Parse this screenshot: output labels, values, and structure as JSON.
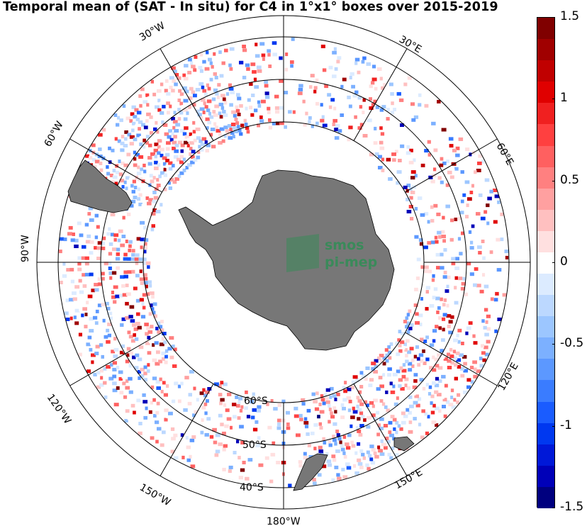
{
  "title": "Temporal mean of (SAT - In situ) for C4 in 1°x1° boxes over 2015-2019",
  "map": {
    "projection": "south-polar-stereographic",
    "longitude_labels": [
      {
        "lon": -30,
        "text": "30°W"
      },
      {
        "lon": 30,
        "text": "30°E"
      },
      {
        "lon": -60,
        "text": "60°W"
      },
      {
        "lon": 60,
        "text": "60°E"
      },
      {
        "lon": -90,
        "text": "90°W"
      },
      {
        "lon": -120,
        "text": "120°W"
      },
      {
        "lon": 120,
        "text": "120°E"
      },
      {
        "lon": -150,
        "text": "150°W"
      },
      {
        "lon": 150,
        "text": "150°E"
      },
      {
        "lon": 180,
        "text": "180°W"
      }
    ],
    "latitude_labels": [
      {
        "lat": -60,
        "text": "60°S"
      },
      {
        "lat": -50,
        "text": "50°S"
      },
      {
        "lat": -40,
        "text": "40°S"
      }
    ],
    "land_color": "#777777",
    "logo": {
      "line1": "smos",
      "line2": "pi-mep",
      "color": "#3a8a5a"
    }
  },
  "colorbar": {
    "min": -1.5,
    "max": 1.5,
    "colormap": "blue-white-red diverging",
    "ticks": [
      {
        "value": 1.5,
        "label": "1.5"
      },
      {
        "value": 1,
        "label": "1"
      },
      {
        "value": 0.5,
        "label": "0.5"
      },
      {
        "value": 0,
        "label": "0"
      },
      {
        "value": -0.5,
        "label": "-0.5"
      },
      {
        "value": -1,
        "label": "-1"
      },
      {
        "value": -1.5,
        "label": "-1.5"
      }
    ],
    "colors": [
      "#00007f",
      "#0000b8",
      "#0018d8",
      "#0038f0",
      "#1a5cff",
      "#3a7cff",
      "#5c98ff",
      "#7cb0ff",
      "#9cc6ff",
      "#bcd8ff",
      "#dcebff",
      "#ffffff",
      "#ffe0e0",
      "#ffc0c0",
      "#ffa0a0",
      "#ff8080",
      "#ff6060",
      "#ff4040",
      "#f02020",
      "#e00000",
      "#c00000",
      "#a00000",
      "#800000"
    ]
  }
}
